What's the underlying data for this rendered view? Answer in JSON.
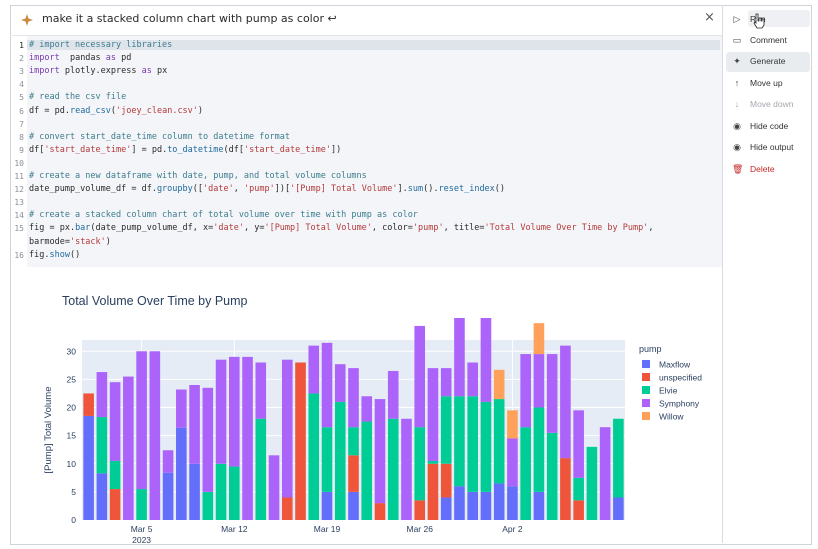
{
  "prompt": {
    "text": "make it a stacked column chart with pump as color ↩",
    "close_label": "×"
  },
  "code": {
    "lines": [
      {
        "n": "1",
        "parts": [
          [
            "c-cm",
            "# import necessary libraries"
          ]
        ]
      },
      {
        "n": "2",
        "parts": [
          [
            "c-kw",
            "import"
          ],
          [
            "",
            "  pandas "
          ],
          [
            "c-kw",
            "as"
          ],
          [
            "",
            " pd"
          ]
        ]
      },
      {
        "n": "3",
        "parts": [
          [
            "c-kw",
            "import"
          ],
          [
            "",
            " plotly.express "
          ],
          [
            "c-kw",
            "as"
          ],
          [
            "",
            " px"
          ]
        ]
      },
      {
        "n": "4",
        "parts": []
      },
      {
        "n": "5",
        "parts": [
          [
            "c-cm",
            "# read the csv file"
          ]
        ]
      },
      {
        "n": "6",
        "parts": [
          [
            "",
            "df = pd."
          ],
          [
            "c-fn",
            "read_csv"
          ],
          [
            "",
            "("
          ],
          [
            "c-str",
            "'joey_clean.csv'"
          ],
          [
            "",
            ")"
          ]
        ]
      },
      {
        "n": "7",
        "parts": []
      },
      {
        "n": "8",
        "parts": [
          [
            "c-cm",
            "# convert start_date_time column to datetime format"
          ]
        ]
      },
      {
        "n": "9",
        "parts": [
          [
            "",
            "df["
          ],
          [
            "c-str",
            "'start_date_time'"
          ],
          [
            "",
            "] = pd."
          ],
          [
            "c-fn",
            "to_datetime"
          ],
          [
            "",
            "(df["
          ],
          [
            "c-str",
            "'start_date_time'"
          ],
          [
            "",
            "])"
          ]
        ]
      },
      {
        "n": "10",
        "parts": []
      },
      {
        "n": "11",
        "parts": [
          [
            "c-cm",
            "# create a new dataframe with date, pump, and total volume columns"
          ]
        ]
      },
      {
        "n": "12",
        "parts": [
          [
            "",
            "date_pump_volume_df = df."
          ],
          [
            "c-fn",
            "groupby"
          ],
          [
            "",
            "(["
          ],
          [
            "c-str",
            "'date'"
          ],
          [
            "",
            ", "
          ],
          [
            "c-str",
            "'pump'"
          ],
          [
            "",
            "])["
          ],
          [
            "c-str",
            "'[Pump] Total Volume'"
          ],
          [
            "",
            "]."
          ],
          [
            "c-fn",
            "sum"
          ],
          [
            "",
            "()."
          ],
          [
            "c-fn",
            "reset_index"
          ],
          [
            "",
            "()"
          ]
        ]
      },
      {
        "n": "13",
        "parts": []
      },
      {
        "n": "14",
        "parts": [
          [
            "c-cm",
            "# create a stacked column chart of total volume over time with pump as color"
          ]
        ]
      },
      {
        "n": "15",
        "parts": [
          [
            "",
            "fig = px."
          ],
          [
            "c-fn",
            "bar"
          ],
          [
            "",
            "(date_pump_volume_df, x="
          ],
          [
            "c-str",
            "'date'"
          ],
          [
            "",
            ", y="
          ],
          [
            "c-str",
            "'[Pump] Total Volume'"
          ],
          [
            "",
            ", color="
          ],
          [
            "c-str",
            "'pump'"
          ],
          [
            "",
            ", title="
          ],
          [
            "c-str",
            "'Total Volume Over Time by Pump'"
          ],
          [
            "",
            ","
          ]
        ]
      },
      {
        "n": "",
        "parts": [
          [
            "",
            "barmode="
          ],
          [
            "c-str",
            "'stack'"
          ],
          [
            "",
            ")"
          ]
        ]
      },
      {
        "n": "16",
        "parts": [
          [
            "",
            "fig."
          ],
          [
            "c-fn",
            "show"
          ],
          [
            "",
            "()"
          ]
        ]
      }
    ]
  },
  "sidebar": {
    "items": [
      {
        "label": "Run",
        "icon": "play-icon",
        "glyph": "▷",
        "state": "normal"
      },
      {
        "label": "Comment",
        "icon": "comment-icon",
        "glyph": "▭",
        "state": "normal"
      },
      {
        "label": "Generate",
        "icon": "sparkle-icon",
        "glyph": "✦",
        "state": "selected"
      },
      {
        "label": "Move up",
        "icon": "arrow-up-icon",
        "glyph": "↑",
        "state": "normal"
      },
      {
        "label": "Move down",
        "icon": "arrow-down-icon",
        "glyph": "↓",
        "state": "disabled"
      },
      {
        "label": "Hide code",
        "icon": "eye-icon",
        "glyph": "◉",
        "state": "normal"
      },
      {
        "label": "Hide output",
        "icon": "eye-icon",
        "glyph": "◉",
        "state": "normal"
      },
      {
        "label": "Delete",
        "icon": "trash-icon",
        "glyph": "🗑",
        "state": "danger"
      }
    ]
  },
  "chart_data": {
    "type": "bar",
    "title": "Total Volume Over Time by Pump",
    "ylabel": "[Pump] Total Volume",
    "xlabel": "",
    "ylim": [
      0,
      32
    ],
    "yticks": [
      0,
      5,
      10,
      15,
      20,
      25,
      30
    ],
    "xticks": [
      {
        "label": "Mar 5",
        "sub": "2023",
        "index": 4
      },
      {
        "label": "Mar 12",
        "sub": "",
        "index": 11
      },
      {
        "label": "Mar 19",
        "sub": "",
        "index": 18
      },
      {
        "label": "Mar 26",
        "sub": "",
        "index": 25
      },
      {
        "label": "Apr 2",
        "sub": "",
        "index": 32
      }
    ],
    "legend_title": "pump",
    "legend_position": "right",
    "series_colors": {
      "Maxflow": "#636efa",
      "unspecified": "#ef553b",
      "Elvie": "#00cc96",
      "Symphony": "#ab63fa",
      "Willow": "#ffa15a"
    },
    "series_order": [
      "Maxflow",
      "unspecified",
      "Elvie",
      "Symphony",
      "Willow"
    ],
    "categories": [
      "Feb 28",
      "Mar 1",
      "Mar 2",
      "Mar 3",
      "Mar 4",
      "Mar 5",
      "Mar 6",
      "Mar 7",
      "Mar 8",
      "Mar 9",
      "Mar 10",
      "Mar 11",
      "Mar 12",
      "Mar 13",
      "Mar 14",
      "Mar 15",
      "Mar 16",
      "Mar 17",
      "Mar 18",
      "Mar 19",
      "Mar 20",
      "Mar 21",
      "Mar 22",
      "Mar 23",
      "Mar 24",
      "Mar 25",
      "Mar 26",
      "Mar 27",
      "Mar 28",
      "Mar 29",
      "Mar 30",
      "Mar 31",
      "Apr 1",
      "Apr 2",
      "Apr 3",
      "Apr 4",
      "Apr 5",
      "Apr 6",
      "Apr 7",
      "Apr 8",
      "Apr 9"
    ],
    "series": [
      {
        "name": "Maxflow",
        "values": [
          18.5,
          8.3,
          0,
          0,
          0,
          0,
          8.4,
          16.4,
          10,
          0,
          0,
          0,
          0,
          0,
          0,
          0,
          0,
          0,
          5,
          0,
          5,
          0,
          0,
          0,
          0,
          0,
          0,
          4,
          6,
          5,
          5,
          6.5,
          6,
          0,
          5,
          0,
          0,
          0,
          0,
          0,
          4
        ]
      },
      {
        "name": "unspecified",
        "values": [
          4,
          0,
          5.5,
          0,
          0,
          0,
          0,
          0,
          0,
          0,
          0,
          0,
          0,
          0,
          0,
          4,
          28,
          0,
          0,
          0,
          6.5,
          0,
          3,
          0,
          0,
          3.5,
          10,
          6,
          0,
          0,
          0,
          0,
          0,
          0,
          0,
          0,
          11,
          3.5,
          0,
          0,
          0
        ]
      },
      {
        "name": "Elvie",
        "values": [
          0,
          10,
          5,
          0,
          5.5,
          0,
          0,
          0,
          0,
          5,
          10,
          9.5,
          0,
          18,
          0,
          0,
          0,
          22.5,
          11.5,
          21,
          5,
          17.5,
          0,
          18,
          0,
          13,
          0.5,
          12,
          16,
          17,
          16,
          15,
          0,
          16.5,
          15,
          15.5,
          0,
          4,
          13,
          0,
          14
        ]
      },
      {
        "name": "Symphony",
        "values": [
          0,
          8,
          14,
          25.5,
          24.5,
          30,
          4,
          6.8,
          14,
          18.5,
          18.5,
          19.5,
          29,
          10,
          11.5,
          24.5,
          0,
          8.5,
          15,
          6.7,
          10.5,
          4.5,
          18.5,
          8.5,
          18,
          18,
          16.5,
          5,
          15,
          6,
          15.5,
          0,
          8.5,
          13,
          9.5,
          14,
          20,
          12,
          0,
          16.5,
          0
        ]
      },
      {
        "name": "Willow",
        "values": [
          0,
          0,
          0,
          0,
          0,
          0,
          0,
          0,
          0,
          0,
          0,
          0,
          0,
          0,
          0,
          0,
          0,
          0,
          0,
          0,
          0,
          0,
          0,
          0,
          0,
          0,
          0,
          0,
          0,
          0,
          0,
          5.2,
          5,
          0,
          5.5,
          0,
          0,
          0,
          0,
          0,
          0
        ]
      }
    ]
  }
}
